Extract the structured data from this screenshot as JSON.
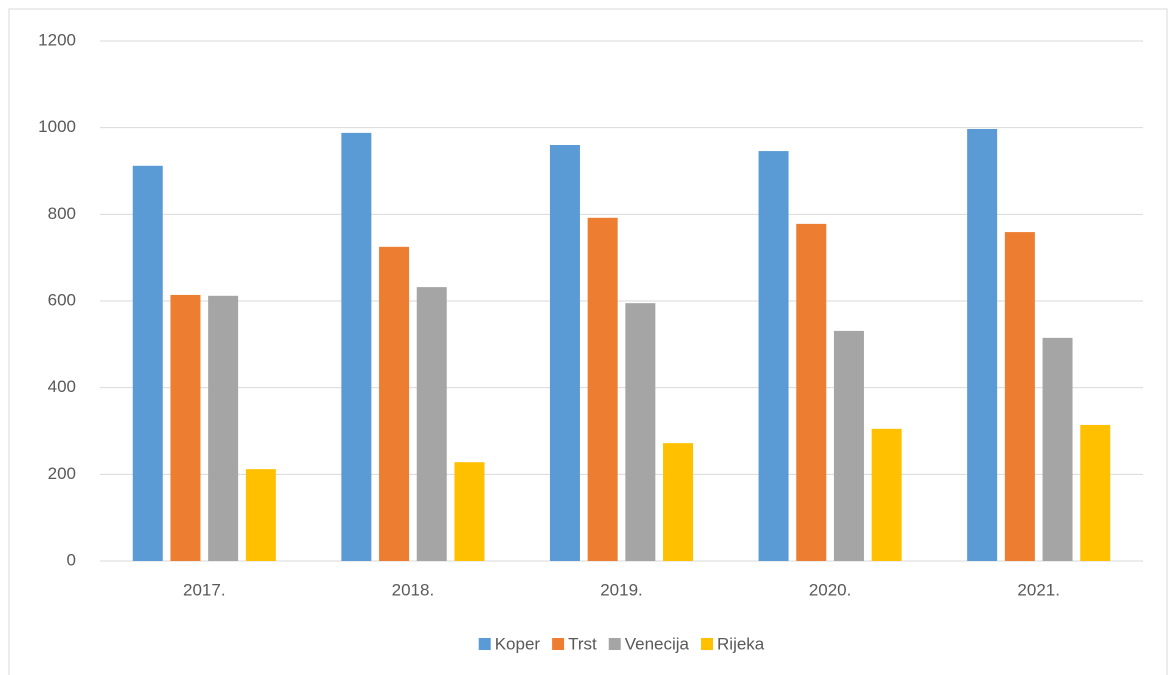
{
  "chart_data": {
    "type": "bar",
    "categories": [
      "2017.",
      "2018.",
      "2019.",
      "2020.",
      "2021."
    ],
    "series": [
      {
        "name": "Koper",
        "color": "#5b9bd5",
        "values": [
          912,
          988,
          960,
          946,
          997
        ]
      },
      {
        "name": "Trst",
        "color": "#ed7d31",
        "values": [
          614,
          725,
          792,
          778,
          759
        ]
      },
      {
        "name": "Venecija",
        "color": "#a5a5a5",
        "values": [
          612,
          632,
          595,
          531,
          515
        ]
      },
      {
        "name": "Rijeka",
        "color": "#ffc000",
        "values": [
          212,
          228,
          272,
          305,
          314
        ]
      }
    ],
    "ylim": [
      0,
      1200
    ],
    "yticks": [
      0,
      200,
      400,
      600,
      800,
      1000,
      1200
    ],
    "grid": true,
    "legend": "bottom"
  }
}
